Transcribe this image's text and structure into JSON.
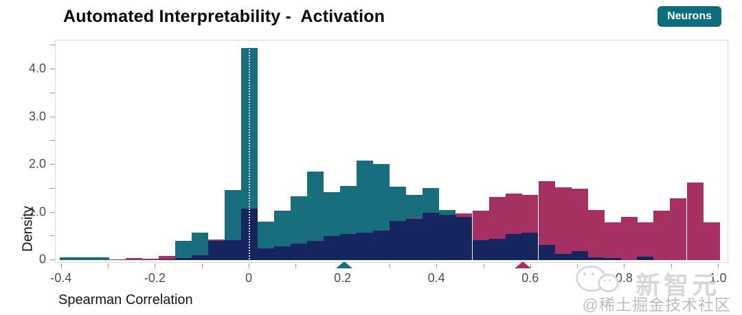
{
  "page": {
    "title_text": "Automated Interpretability -  Activation",
    "badge_label": "Neurons"
  },
  "watermark": {
    "brand": "新智元",
    "handle": "@稀土掘金技术社区"
  },
  "chart_data": {
    "type": "bar",
    "subtype": "overlaid-histogram",
    "title": "Automated Interpretability -  Activation",
    "xlabel": "Spearman Correlation",
    "ylabel": "Density",
    "xlim": [
      -0.413,
      1.022
    ],
    "ylim": [
      0,
      4.59
    ],
    "grid": false,
    "legend_position": "none",
    "bin_width": 0.0351,
    "zero_reference_line_x": 0,
    "x_axis": {
      "tick_labels": [
        {
          "v": -0.4,
          "t": "-0.4"
        },
        {
          "v": -0.2,
          "t": "-0.2"
        },
        {
          "v": 0,
          "t": "0"
        },
        {
          "v": 0.2,
          "t": "0.2"
        },
        {
          "v": 0.4,
          "t": "0.4"
        },
        {
          "v": 0.6,
          "t": "0.6"
        },
        {
          "v": 0.8,
          "t": "0.8"
        },
        {
          "v": 1.0,
          "t": "1.0"
        }
      ],
      "minor_ticks": [
        -0.4,
        -0.3,
        -0.2,
        -0.1,
        0,
        0.1,
        0.2,
        0.3,
        0.4,
        0.5,
        0.6,
        0.7,
        0.8,
        0.9,
        1.0
      ]
    },
    "y_axis": {
      "tick_labels": [
        {
          "v": 0,
          "t": "0"
        },
        {
          "v": 1,
          "t": "1.0"
        },
        {
          "v": 2,
          "t": "2.0"
        },
        {
          "v": 3,
          "t": "3.0"
        },
        {
          "v": 4,
          "t": "4.0"
        }
      ],
      "minor_ticks": [
        0,
        0.5,
        1,
        1.5,
        2,
        2.5,
        3,
        3.5,
        4,
        4.5
      ]
    },
    "series": [
      {
        "name": "series-teal",
        "color": "#176D7C",
        "bins": [
          {
            "c": -0.386,
            "h": 0.06
          },
          {
            "c": -0.351,
            "h": 0.06
          },
          {
            "c": -0.316,
            "h": 0.06
          },
          {
            "c": -0.281,
            "h": 0.02
          },
          {
            "c": -0.176,
            "h": 0.04
          },
          {
            "c": -0.141,
            "h": 0.4
          },
          {
            "c": -0.105,
            "h": 0.57
          },
          {
            "c": -0.07,
            "h": 0.3
          },
          {
            "c": -0.035,
            "h": 1.47
          },
          {
            "c": 0.0,
            "h": 4.45
          },
          {
            "c": 0.035,
            "h": 0.8
          },
          {
            "c": 0.07,
            "h": 1.04
          },
          {
            "c": 0.106,
            "h": 1.34
          },
          {
            "c": 0.141,
            "h": 1.86
          },
          {
            "c": 0.176,
            "h": 1.42
          },
          {
            "c": 0.211,
            "h": 1.56
          },
          {
            "c": 0.246,
            "h": 2.08
          },
          {
            "c": 0.281,
            "h": 2.02
          },
          {
            "c": 0.316,
            "h": 1.54
          },
          {
            "c": 0.352,
            "h": 1.37
          },
          {
            "c": 0.387,
            "h": 1.51
          },
          {
            "c": 0.422,
            "h": 1.05
          }
        ]
      },
      {
        "name": "series-magenta",
        "color": "#A63063",
        "bins": [
          {
            "c": -0.281,
            "h": 0.02
          },
          {
            "c": -0.246,
            "h": 0.05
          },
          {
            "c": -0.211,
            "h": 0.03
          },
          {
            "c": -0.176,
            "h": 0.09
          },
          {
            "c": -0.07,
            "h": 0.43
          },
          {
            "c": 0.352,
            "h": 0.88
          },
          {
            "c": 0.457,
            "h": 0.98
          },
          {
            "c": 0.493,
            "h": 1.04
          },
          {
            "c": 0.528,
            "h": 1.33
          },
          {
            "c": 0.563,
            "h": 1.4
          },
          {
            "c": 0.598,
            "h": 1.37
          },
          {
            "c": 0.634,
            "h": 1.65
          },
          {
            "c": 0.669,
            "h": 1.52
          },
          {
            "c": 0.704,
            "h": 1.49
          },
          {
            "c": 0.739,
            "h": 1.05
          },
          {
            "c": 0.774,
            "h": 0.79
          },
          {
            "c": 0.809,
            "h": 0.91
          },
          {
            "c": 0.844,
            "h": 0.79
          },
          {
            "c": 0.879,
            "h": 1.04
          },
          {
            "c": 0.914,
            "h": 1.3
          },
          {
            "c": 0.95,
            "h": 1.63
          },
          {
            "c": 0.985,
            "h": 0.79
          }
        ]
      },
      {
        "name": "series-navy",
        "color": "#17255E",
        "bins": [
          {
            "c": -0.176,
            "h": 0.02
          },
          {
            "c": -0.141,
            "h": 0.04
          },
          {
            "c": -0.105,
            "h": 0.1
          },
          {
            "c": -0.07,
            "h": 0.4
          },
          {
            "c": -0.035,
            "h": 0.42
          },
          {
            "c": 0.0,
            "h": 1.08
          },
          {
            "c": 0.035,
            "h": 0.25
          },
          {
            "c": 0.07,
            "h": 0.29
          },
          {
            "c": 0.106,
            "h": 0.35
          },
          {
            "c": 0.141,
            "h": 0.4
          },
          {
            "c": 0.176,
            "h": 0.5
          },
          {
            "c": 0.211,
            "h": 0.54
          },
          {
            "c": 0.246,
            "h": 0.58
          },
          {
            "c": 0.281,
            "h": 0.62
          },
          {
            "c": 0.316,
            "h": 0.82
          },
          {
            "c": 0.352,
            "h": 0.86
          },
          {
            "c": 0.387,
            "h": 0.99
          },
          {
            "c": 0.422,
            "h": 0.95
          },
          {
            "c": 0.457,
            "h": 0.91
          },
          {
            "c": 0.493,
            "h": 0.42
          },
          {
            "c": 0.528,
            "h": 0.44
          },
          {
            "c": 0.563,
            "h": 0.54
          },
          {
            "c": 0.598,
            "h": 0.57
          },
          {
            "c": 0.634,
            "h": 0.32
          },
          {
            "c": 0.669,
            "h": 0.13
          },
          {
            "c": 0.704,
            "h": 0.18
          },
          {
            "c": 0.739,
            "h": 0.06
          },
          {
            "c": 0.774,
            "h": 0.05
          },
          {
            "c": 0.844,
            "h": 0.07
          }
        ]
      }
    ],
    "mean_markers": [
      {
        "x": 0.203,
        "color": "#176D7C"
      },
      {
        "x": 0.584,
        "color": "#A63063"
      }
    ]
  }
}
